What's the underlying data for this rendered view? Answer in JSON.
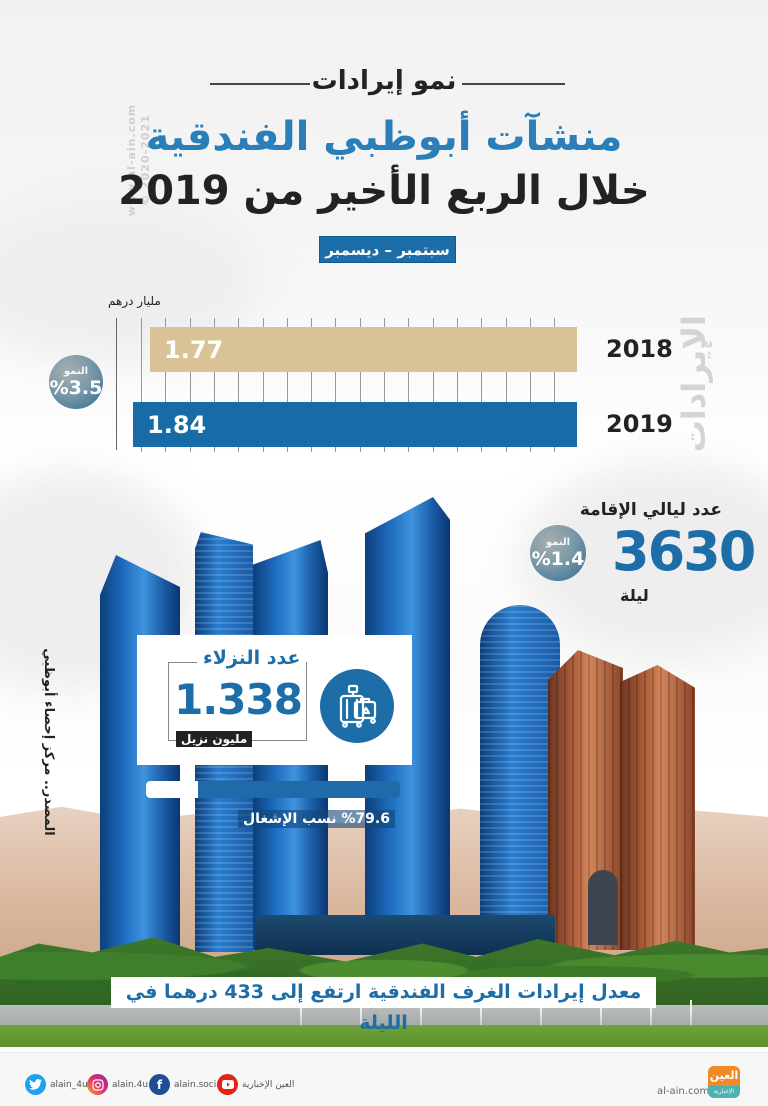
{
  "header": {
    "kicker": "نمو إيرادات",
    "title_line1": "منشآت أبوظبي الفندقية",
    "title_line2": "خلال الربع الأخير من 2019",
    "period": "سبتمبر – ديسمبر",
    "watermark_line1": "www.al-ain.com",
    "watermark_line2": "© 2020-2021"
  },
  "revenue": {
    "section_label": "الإيرادات",
    "unit": "مليار درهم",
    "growth_label": "النمو",
    "growth_value": "%3.5",
    "bars": [
      {
        "year": "2018",
        "value": "1.77",
        "color": "#d9c296"
      },
      {
        "year": "2019",
        "value": "1.84",
        "color": "#176ba6"
      }
    ]
  },
  "nights": {
    "title": "عدد ليالي الإقامة",
    "value": "3630",
    "unit": "ليلة",
    "growth_label": "النمو",
    "growth_value": "%1.4"
  },
  "guests": {
    "title": "عدد النزلاء",
    "value": "1.338",
    "unit": "مليون نزيل",
    "icon": "luggage-icon"
  },
  "occupancy": {
    "label": "%79.6 نسب الإشغال",
    "percent": 79.6
  },
  "source": "المصدر.. مركز إحصاء أبوظبي",
  "room_rate_banner": "معدل إيرادات الغرف الفندقية ارتفع إلى 433 درهما في الليلة",
  "footer": {
    "social": [
      {
        "icon": "twitter-icon",
        "handle": "alain_4u",
        "color": "#1da1f2"
      },
      {
        "icon": "instagram-icon",
        "handle": "alain.4u",
        "color": "#e1306c"
      },
      {
        "icon": "facebook-icon",
        "handle": "alain.social",
        "color": "#1f4e96"
      },
      {
        "icon": "youtube-icon",
        "handle": "العين الإخبارية",
        "color": "#e62117"
      }
    ],
    "site": "al-ain.com",
    "logo_top": "العين",
    "logo_bottom": "الإخبارية"
  },
  "colors": {
    "brand_blue": "#1d6da8",
    "bar_2018": "#d9c296",
    "bar_2019": "#176ba6"
  },
  "chart_data": {
    "type": "bar",
    "orientation": "horizontal",
    "title": "الإيرادات",
    "categories": [
      "2018",
      "2019"
    ],
    "values": [
      1.77,
      1.84
    ],
    "xlabel": "مليار درهم",
    "ylabel": "",
    "annotations": [
      "النمو %3.5"
    ],
    "grid": true
  }
}
